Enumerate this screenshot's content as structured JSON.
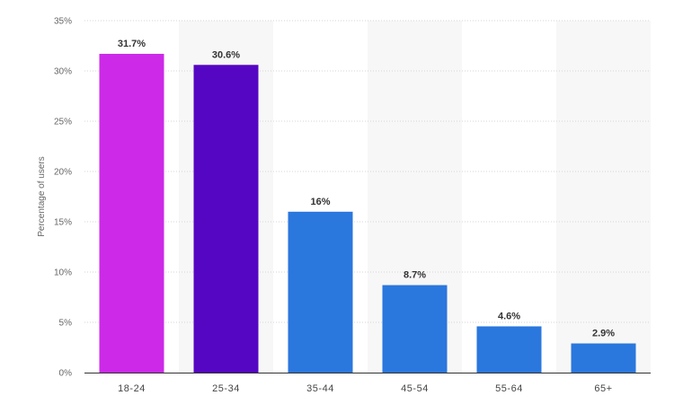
{
  "chart_data": {
    "type": "bar",
    "title": "",
    "xlabel": "",
    "ylabel": "Percentage of users",
    "categories": [
      "18-24",
      "25-34",
      "35-44",
      "45-54",
      "55-64",
      "65+"
    ],
    "values": [
      31.7,
      30.6,
      16,
      8.7,
      4.6,
      2.9
    ],
    "value_labels": [
      "31.7%",
      "30.6%",
      "16%",
      "8.7%",
      "4.6%",
      "2.9%"
    ],
    "bar_colors": [
      "#cc29e8",
      "#5506c2",
      "#2a77de",
      "#2a77de",
      "#2a77de",
      "#2a77de"
    ],
    "ylim": [
      0,
      35
    ],
    "yticks": [
      0,
      5,
      10,
      15,
      20,
      25,
      30,
      35
    ],
    "ytick_labels": [
      "0%",
      "5%",
      "10%",
      "15%",
      "20%",
      "25%",
      "30%",
      "35%"
    ],
    "grid": true,
    "legend": "none",
    "band_color": "#f7f7f7"
  }
}
